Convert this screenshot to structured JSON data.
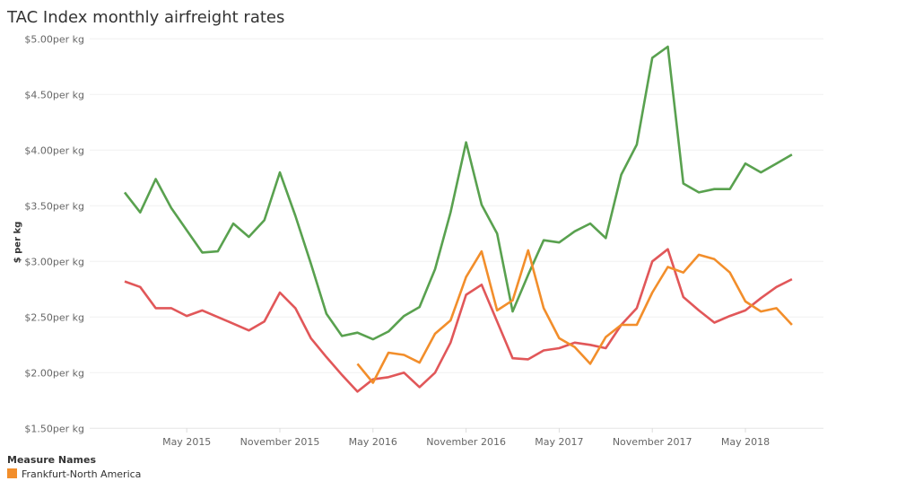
{
  "chart_data": {
    "type": "line",
    "title": "TAC Index monthly airfreight rates",
    "xlabel": "",
    "ylabel": "$ per kg",
    "ylim": [
      1.5,
      5.0
    ],
    "y_ticks": [
      "$1.50per kg",
      "$2.00per kg",
      "$2.50per kg",
      "$3.00per kg",
      "$3.50per kg",
      "$4.00per kg",
      "$4.50per kg",
      "$5.00per kg"
    ],
    "x_ticks": [
      "May 2015",
      "November 2015",
      "May 2016",
      "November 2016",
      "May 2017",
      "November 2017",
      "May 2018"
    ],
    "grid": "horizontal",
    "x": [
      "2015-01",
      "2015-02",
      "2015-03",
      "2015-04",
      "2015-05",
      "2015-06",
      "2015-07",
      "2015-08",
      "2015-09",
      "2015-10",
      "2015-11",
      "2015-12",
      "2016-01",
      "2016-02",
      "2016-03",
      "2016-04",
      "2016-05",
      "2016-06",
      "2016-07",
      "2016-08",
      "2016-09",
      "2016-10",
      "2016-11",
      "2016-12",
      "2017-01",
      "2017-02",
      "2017-03",
      "2017-04",
      "2017-05",
      "2017-06",
      "2017-07",
      "2017-08",
      "2017-09",
      "2017-10",
      "2017-11",
      "2017-12",
      "2018-01",
      "2018-02",
      "2018-03",
      "2018-04",
      "2018-05",
      "2018-06",
      "2018-07",
      "2018-08"
    ],
    "series": [
      {
        "color": "#59a14f",
        "values": [
          3.62,
          3.44,
          3.74,
          3.48,
          3.28,
          3.08,
          3.09,
          3.34,
          3.22,
          3.37,
          3.8,
          3.41,
          2.98,
          2.53,
          2.33,
          2.36,
          2.3,
          2.37,
          2.51,
          2.59,
          2.93,
          3.44,
          4.07,
          3.51,
          3.25,
          2.55,
          2.88,
          3.19,
          3.17,
          3.27,
          3.34,
          3.21,
          3.78,
          4.05,
          4.83,
          4.93,
          3.7,
          3.62,
          3.65,
          3.65,
          3.88,
          3.8,
          3.88,
          3.96
        ]
      },
      {
        "color": "#e15759",
        "values": [
          2.82,
          2.77,
          2.58,
          2.58,
          2.51,
          2.56,
          2.5,
          2.44,
          2.38,
          2.46,
          2.72,
          2.58,
          2.31,
          2.14,
          1.98,
          1.83,
          1.94,
          1.96,
          2.0,
          1.87,
          2.0,
          2.27,
          2.7,
          2.79,
          2.46,
          2.13,
          2.12,
          2.2,
          2.22,
          2.27,
          2.25,
          2.22,
          2.43,
          2.58,
          3.0,
          3.11,
          2.68,
          2.56,
          2.45,
          2.51,
          2.56,
          2.67,
          2.77,
          2.84
        ]
      },
      {
        "name": "Frankfurt-North America",
        "color": "#f28e2b",
        "values": [
          null,
          null,
          null,
          null,
          null,
          null,
          null,
          null,
          null,
          null,
          null,
          null,
          null,
          null,
          null,
          2.08,
          1.91,
          2.18,
          2.16,
          2.09,
          2.35,
          2.47,
          2.86,
          3.09,
          2.56,
          2.65,
          3.1,
          2.58,
          2.31,
          2.23,
          2.08,
          2.32,
          2.43,
          2.43,
          2.72,
          2.95,
          2.9,
          3.06,
          3.02,
          2.9,
          2.64,
          2.55,
          2.58,
          2.43
        ]
      }
    ],
    "legend": {
      "title": "Measure Names",
      "placement": "bottom-left"
    }
  }
}
